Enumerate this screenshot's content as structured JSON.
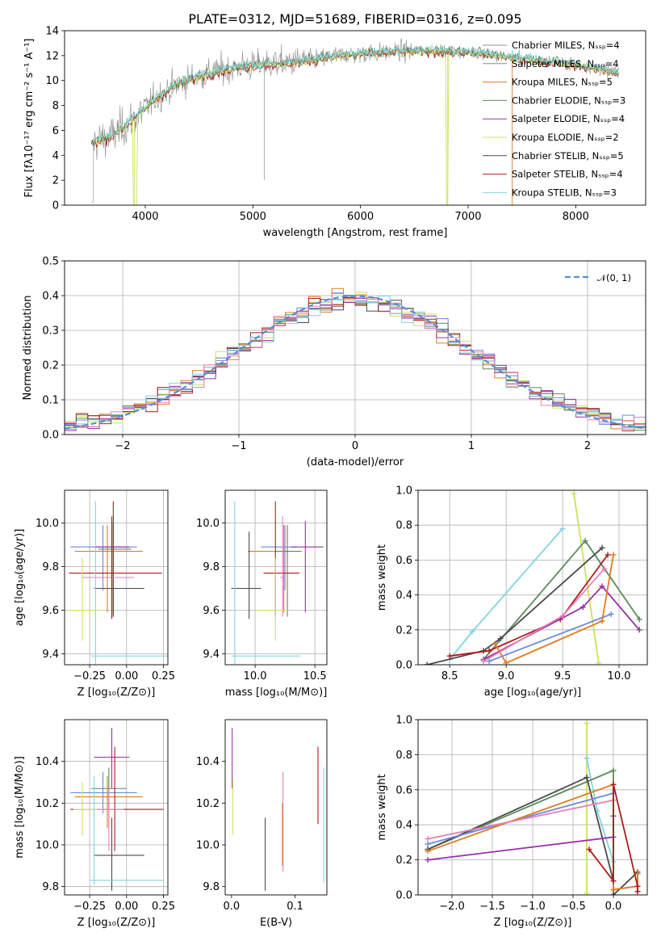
{
  "colors": {
    "chabrier_miles": "#8c8c8c",
    "salpeter_miles": "#6b8be0",
    "kroupa_miles": "#e07b20",
    "chabrier_elodie": "#5a8a5a",
    "salpeter_elodie": "#9a2fa8",
    "kroupa_elodie": "#cfe05a",
    "chabrier_stelib": "#4a4a4a",
    "salpeter_stelib": "#b01a1a",
    "kroupa_stelib": "#7fd6df",
    "pink": "#e67fb8",
    "normal_curve": "#5a8ad8"
  },
  "chart_data": [
    {
      "id": "spectrum",
      "type": "line",
      "title": "PLATE=0312, MJD=51689, FIBERID=0316, z=0.095",
      "xlabel": "wavelength [Angstrom, rest frame]",
      "ylabel": "Flux [fλ10⁻¹⁷ erg cm⁻² s⁻¹ A⁻¹]",
      "xlim": [
        3250,
        8650
      ],
      "ylim": [
        0,
        14
      ],
      "xticks": [
        "4000",
        "5000",
        "6000",
        "7000",
        "8000"
      ],
      "yticks": [
        "0",
        "2",
        "4",
        "6",
        "8",
        "10",
        "12",
        "14"
      ],
      "legend_position": "right",
      "legend": [
        "Chabrier MILES, Nₛₛₚ=4",
        "Salpeter MILES, Nₛₛₚ=4",
        "Kroupa MILES, Nₛₛₚ=5",
        "Chabrier ELODIE, Nₛₛₚ=3",
        "Salpeter ELODIE, Nₛₛₚ=4",
        "Kroupa ELODIE, Nₛₛₚ=2",
        "Chabrier STELIB, Nₛₛₚ=5",
        "Salpeter STELIB, Nₛₛₚ=4",
        "Kroupa STELIB, Nₛₛₚ=3"
      ],
      "continuum": [
        [
          3500,
          5.0
        ],
        [
          3700,
          5.6
        ],
        [
          3900,
          7.0
        ],
        [
          4100,
          8.6
        ],
        [
          4300,
          9.7
        ],
        [
          4500,
          10.4
        ],
        [
          4700,
          10.8
        ],
        [
          4900,
          11.1
        ],
        [
          5100,
          11.3
        ],
        [
          5300,
          11.4
        ],
        [
          5500,
          11.6
        ],
        [
          5700,
          11.9
        ],
        [
          5900,
          12.1
        ],
        [
          6100,
          12.2
        ],
        [
          6300,
          12.3
        ],
        [
          6500,
          12.4
        ],
        [
          6700,
          12.4
        ],
        [
          6900,
          12.3
        ],
        [
          7100,
          12.2
        ],
        [
          7300,
          12.0
        ],
        [
          7500,
          11.8
        ],
        [
          7700,
          11.6
        ],
        [
          7900,
          11.4
        ],
        [
          8100,
          11.1
        ],
        [
          8300,
          10.8
        ],
        [
          8400,
          10.6
        ]
      ]
    },
    {
      "id": "residuals",
      "type": "line",
      "xlabel": "(data-model)/error",
      "ylabel": "Normed distribution",
      "xlim": [
        -2.5,
        2.5
      ],
      "ylim": [
        0,
        0.5
      ],
      "xticks": [
        "−2",
        "−1",
        "0",
        "1",
        "2"
      ],
      "yticks": [
        "0.0",
        "0.1",
        "0.2",
        "0.3",
        "0.4",
        "0.5"
      ],
      "legend": [
        "𝒩(0, 1)"
      ],
      "legend_position": "top-right",
      "grid": true,
      "bin_width": 0.1
    },
    {
      "id": "age_vs_Z",
      "type": "scatter",
      "xlabel": "Z [log₁₀(Z/Z⊙)]",
      "ylabel": "age  [log₁₀(age/yr)]",
      "xlim": [
        -0.42,
        0.28
      ],
      "ylim": [
        9.35,
        10.15
      ],
      "xticks": [
        "−0.25",
        "0.00",
        "0.25"
      ],
      "yticks": [
        "9.4",
        "9.6",
        "9.8",
        "10.0"
      ],
      "grid": true,
      "points": [
        {
          "x": -0.16,
          "y": 9.89,
          "xerr": [
            0.22,
            0.23
          ],
          "yerr": [
            0.2,
            0.1
          ],
          "color": "salpeter_miles"
        },
        {
          "x": -0.13,
          "y": 9.87,
          "xerr": [
            0.22,
            0.24
          ],
          "yerr": [
            0.28,
            0.12
          ],
          "color": "kroupa_miles"
        },
        {
          "x": -0.1,
          "y": 9.89,
          "xerr": [
            0.12,
            0.12
          ],
          "yerr": [
            0.3,
            0.12
          ],
          "color": "salpeter_elodie"
        },
        {
          "x": -0.09,
          "y": 9.88,
          "xerr": [
            0.1,
            0.12
          ],
          "yerr": [
            0.3,
            0.12
          ],
          "color": "chabrier_elodie"
        },
        {
          "x": -0.09,
          "y": 9.77,
          "xerr": [
            0.3,
            0.33
          ],
          "yerr": [
            0.2,
            0.33
          ],
          "color": "salpeter_stelib"
        },
        {
          "x": -0.1,
          "y": 9.75,
          "xerr": [
            0.2,
            0.15
          ],
          "yerr": [
            0.18,
            0.28
          ],
          "color": "pink"
        },
        {
          "x": -0.1,
          "y": 9.7,
          "xerr": [
            0.12,
            0.22
          ],
          "yerr": [
            0.14,
            0.33
          ],
          "color": "chabrier_stelib"
        },
        {
          "x": -0.3,
          "y": 9.6,
          "xerr": [
            0.1,
            0.14
          ],
          "yerr": [
            0.14,
            0.24
          ],
          "color": "kroupa_elodie"
        },
        {
          "x": -0.21,
          "y": 9.39,
          "xerr": [
            0.03,
            0.55
          ],
          "yerr": [
            0.05,
            0.71
          ],
          "color": "kroupa_stelib"
        }
      ]
    },
    {
      "id": "age_vs_mass",
      "type": "scatter",
      "xlabel": "mass [log₁₀(M/M⊙)]",
      "ylabel": "",
      "xlim": [
        9.75,
        10.6
      ],
      "ylim": [
        9.35,
        10.15
      ],
      "xticks": [
        "10.0",
        "10.5"
      ],
      "yticks": [
        "9.4",
        "9.6",
        "9.8",
        "10.0"
      ],
      "grid": true,
      "points": [
        {
          "x": 10.25,
          "y": 9.89,
          "xerr": [
            0.2,
            0.1
          ],
          "yerr": [
            0.2,
            0.1
          ],
          "color": "salpeter_miles"
        },
        {
          "x": 10.24,
          "y": 9.87,
          "xerr": [
            0.3,
            0.05
          ],
          "yerr": [
            0.28,
            0.12
          ],
          "color": "kroupa_miles"
        },
        {
          "x": 10.42,
          "y": 9.89,
          "xerr": [
            0.12,
            0.15
          ],
          "yerr": [
            0.3,
            0.12
          ],
          "color": "salpeter_elodie"
        },
        {
          "x": 10.27,
          "y": 9.87,
          "xerr": [
            0.1,
            0.12
          ],
          "yerr": [
            0.3,
            0.12
          ],
          "color": "chabrier_elodie"
        },
        {
          "x": 10.17,
          "y": 9.77,
          "xerr": [
            0.1,
            0.2
          ],
          "yerr": [
            0.2,
            0.33
          ],
          "color": "salpeter_stelib"
        },
        {
          "x": 10.23,
          "y": 9.75,
          "xerr": [
            0.02,
            0.02
          ],
          "yerr": [
            0.18,
            0.28
          ],
          "color": "pink"
        },
        {
          "x": 9.95,
          "y": 9.7,
          "xerr": [
            0.15,
            0.1
          ],
          "yerr": [
            0.14,
            0.26
          ],
          "color": "chabrier_stelib"
        },
        {
          "x": 10.17,
          "y": 9.6,
          "xerr": [
            0.15,
            0.1
          ],
          "yerr": [
            0.14,
            0.24
          ],
          "color": "kroupa_elodie"
        },
        {
          "x": 9.83,
          "y": 9.39,
          "xerr": [
            0.03,
            0.55
          ],
          "yerr": [
            0.05,
            0.71
          ],
          "color": "kroupa_stelib"
        }
      ]
    },
    {
      "id": "mw_vs_age",
      "type": "line",
      "xlabel": "age  [log₁₀(age/yr)]",
      "ylabel": "mass weight",
      "xlim": [
        8.22,
        10.25
      ],
      "ylim": [
        0,
        1.0
      ],
      "xticks": [
        "8.5",
        "9.0",
        "9.5",
        "10.0"
      ],
      "yticks": [
        "0.0",
        "0.2",
        "0.4",
        "0.6",
        "0.8",
        "1.0"
      ],
      "grid": true,
      "series": [
        {
          "color": "kroupa_stelib",
          "points": [
            [
              8.5,
              0.03
            ],
            [
              8.7,
              0.19
            ],
            [
              9.5,
              0.78
            ]
          ]
        },
        {
          "color": "kroupa_elodie",
          "points": [
            [
              9.6,
              0.98
            ],
            [
              9.82,
              0.01
            ]
          ]
        },
        {
          "color": "chabrier_elodie",
          "points": [
            [
              8.8,
              0.03
            ],
            [
              9.7,
              0.71
            ],
            [
              10.18,
              0.26
            ]
          ]
        },
        {
          "color": "chabrier_stelib",
          "points": [
            [
              8.3,
              0.0
            ],
            [
              8.8,
              0.08
            ],
            [
              8.95,
              0.15
            ],
            [
              9.85,
              0.67
            ]
          ]
        },
        {
          "color": "salpeter_stelib",
          "points": [
            [
              8.5,
              0.05
            ],
            [
              8.85,
              0.08
            ],
            [
              9.48,
              0.26
            ],
            [
              9.9,
              0.63
            ]
          ]
        },
        {
          "color": "salpeter_elodie",
          "points": [
            [
              8.8,
              0.03
            ],
            [
              9.68,
              0.33
            ],
            [
              9.85,
              0.45
            ],
            [
              10.18,
              0.2
            ]
          ]
        },
        {
          "color": "salpeter_miles",
          "points": [
            [
              8.85,
              0.02
            ],
            [
              9.93,
              0.29
            ]
          ]
        },
        {
          "color": "kroupa_miles",
          "points": [
            [
              8.9,
              0.12
            ],
            [
              9.0,
              0.01
            ],
            [
              9.85,
              0.25
            ],
            [
              9.95,
              0.63
            ]
          ]
        },
        {
          "color": "pink",
          "points": [
            [
              8.8,
              0.02
            ],
            [
              9.5,
              0.28
            ],
            [
              9.87,
              0.55
            ]
          ]
        }
      ]
    },
    {
      "id": "mass_vs_Z",
      "type": "scatter",
      "xlabel": "Z [log₁₀(Z/Z⊙)]",
      "ylabel": "mass [log₁₀(M/M⊙)]",
      "xlim": [
        -0.42,
        0.28
      ],
      "ylim": [
        9.76,
        10.6
      ],
      "xticks": [
        "−0.25",
        "0.00",
        "0.25"
      ],
      "yticks": [
        "9.8",
        "10.0",
        "10.2",
        "10.4"
      ],
      "grid": true,
      "points": [
        {
          "x": -0.1,
          "y": 10.42,
          "xerr": [
            0.12,
            0.12
          ],
          "yerr": [
            0.15,
            0.14
          ],
          "color": "salpeter_elodie"
        },
        {
          "x": -0.12,
          "y": 10.27,
          "xerr": [
            0.12,
            0.12
          ],
          "yerr": [
            0.1,
            0.1
          ],
          "color": "chabrier_elodie"
        },
        {
          "x": -0.16,
          "y": 10.25,
          "xerr": [
            0.22,
            0.23
          ],
          "yerr": [
            0.1,
            0.1
          ],
          "color": "salpeter_miles"
        },
        {
          "x": -0.13,
          "y": 10.23,
          "xerr": [
            0.22,
            0.24
          ],
          "yerr": [
            0.15,
            0.1
          ],
          "color": "kroupa_miles"
        },
        {
          "x": -0.08,
          "y": 10.17,
          "xerr": [
            0.3,
            0.33
          ],
          "yerr": [
            0.2,
            0.3
          ],
          "color": "salpeter_stelib"
        },
        {
          "x": -0.12,
          "y": 10.17,
          "xerr": [
            0.08,
            0.1
          ],
          "yerr": [
            0.2,
            0.1
          ],
          "color": "pink"
        },
        {
          "x": -0.3,
          "y": 10.17,
          "xerr": [
            0.06,
            0.1
          ],
          "yerr": [
            0.13,
            0.13
          ],
          "color": "kroupa_elodie"
        },
        {
          "x": -0.1,
          "y": 9.95,
          "xerr": [
            0.12,
            0.22
          ],
          "yerr": [
            0.17,
            0.18
          ],
          "color": "chabrier_stelib"
        },
        {
          "x": -0.22,
          "y": 9.83,
          "xerr": [
            0.03,
            0.47
          ],
          "yerr": [
            0.02,
            0.5
          ],
          "color": "kroupa_stelib"
        }
      ]
    },
    {
      "id": "mass_vs_ebv",
      "type": "scatter",
      "xlabel": "E(B-V)",
      "ylabel": "",
      "xlim": [
        -0.01,
        0.15
      ],
      "ylim": [
        9.76,
        10.6
      ],
      "xticks": [
        "0.0",
        "0.1"
      ],
      "yticks": [
        "9.8",
        "10.0",
        "10.2",
        "10.4"
      ],
      "grid": false,
      "points": [
        {
          "x": 0.001,
          "y": 10.42,
          "xerr": [
            0,
            0
          ],
          "yerr": [
            0.15,
            0.14
          ],
          "color": "salpeter_elodie"
        },
        {
          "x": 0.002,
          "y": 10.2,
          "xerr": [
            0,
            0
          ],
          "yerr": [
            0.15,
            0.12
          ],
          "color": "kroupa_elodie"
        },
        {
          "x": 0.053,
          "y": 9.95,
          "xerr": [
            0,
            0
          ],
          "yerr": [
            0.17,
            0.18
          ],
          "color": "chabrier_stelib"
        },
        {
          "x": 0.081,
          "y": 10.17,
          "xerr": [
            0,
            0
          ],
          "yerr": [
            0.3,
            0.18
          ],
          "color": "pink"
        },
        {
          "x": 0.08,
          "y": 10.1,
          "xerr": [
            0,
            0
          ],
          "yerr": [
            0.2,
            0.1
          ],
          "color": "kroupa_miles"
        },
        {
          "x": 0.136,
          "y": 10.3,
          "xerr": [
            0,
            0
          ],
          "yerr": [
            0.2,
            0.17
          ],
          "color": "salpeter_stelib"
        },
        {
          "x": 0.145,
          "y": 10.1,
          "xerr": [
            0,
            0
          ],
          "yerr": [
            0.28,
            0.27
          ],
          "color": "kroupa_stelib"
        }
      ]
    },
    {
      "id": "mw_vs_Z",
      "type": "line",
      "xlabel": "Z [log₁₀(Z/Z⊙)]",
      "ylabel": "mass weight",
      "xlim": [
        -2.42,
        0.42
      ],
      "ylim": [
        0,
        1.0
      ],
      "xticks": [
        "−2.0",
        "−1.5",
        "−1.0",
        "−0.5",
        "0.0"
      ],
      "yticks": [
        "0.0",
        "0.2",
        "0.4",
        "0.6",
        "0.8",
        "1.0"
      ],
      "grid": true,
      "series": [
        {
          "color": "kroupa_elodie",
          "points": [
            [
              -0.33,
              0.98
            ],
            [
              -0.33,
              0.01
            ]
          ]
        },
        {
          "color": "kroupa_stelib",
          "points": [
            [
              -0.33,
              0.78
            ],
            [
              -0.2,
              0.48
            ],
            [
              0.0,
              0.19
            ],
            [
              0.0,
              0.03
            ]
          ]
        },
        {
          "color": "chabrier_elodie",
          "points": [
            [
              -2.3,
              0.26
            ],
            [
              0.0,
              0.71
            ],
            [
              0.0,
              0.03
            ]
          ]
        },
        {
          "color": "chabrier_stelib",
          "points": [
            [
              -2.3,
              0.26
            ],
            [
              -0.33,
              0.67
            ],
            [
              0.0,
              0.08
            ],
            [
              0.0,
              0.0
            ],
            [
              0.3,
              0.13
            ],
            [
              0.3,
              0.02
            ]
          ]
        },
        {
          "color": "salpeter_miles",
          "points": [
            [
              -2.3,
              0.29
            ],
            [
              0.0,
              0.58
            ]
          ]
        },
        {
          "color": "kroupa_miles",
          "points": [
            [
              -2.3,
              0.25
            ],
            [
              0.0,
              0.63
            ],
            [
              0.0,
              0.03
            ],
            [
              0.3,
              0.05
            ],
            [
              0.3,
              0.12
            ]
          ]
        },
        {
          "color": "pink",
          "points": [
            [
              -2.3,
              0.32
            ],
            [
              0.0,
              0.54
            ]
          ]
        },
        {
          "color": "salpeter_elodie",
          "points": [
            [
              -2.3,
              0.2
            ],
            [
              0.0,
              0.33
            ],
            [
              0.0,
              0.45
            ]
          ]
        },
        {
          "color": "salpeter_stelib",
          "points": [
            [
              -0.3,
              0.26
            ],
            [
              0.0,
              0.08
            ],
            [
              0.0,
              0.63
            ],
            [
              0.3,
              0.05
            ],
            [
              0.3,
              0.02
            ]
          ]
        }
      ]
    }
  ]
}
